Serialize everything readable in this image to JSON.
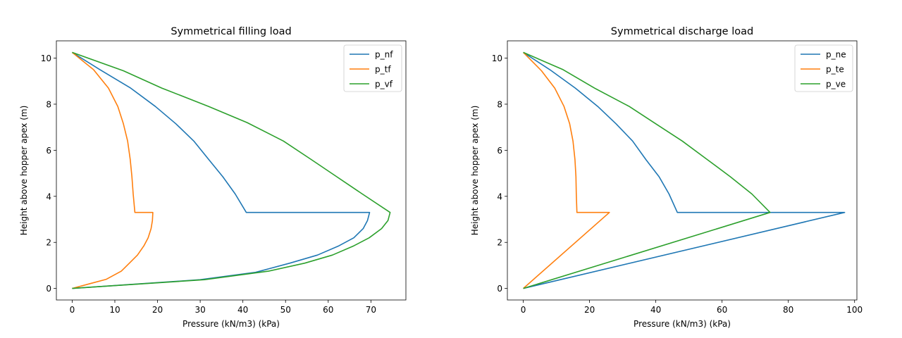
{
  "chart_data": [
    {
      "type": "line",
      "title": "Symmetrical filling load",
      "xlabel": "Pressure (kN/m3) (kPa)",
      "ylabel": "Height above hopper apex (m)",
      "xlim": [
        -3.7,
        78.2
      ],
      "ylim": [
        -0.5,
        10.75
      ],
      "xticks": [
        0,
        10,
        20,
        30,
        40,
        50,
        60,
        70
      ],
      "yticks": [
        0,
        2,
        4,
        6,
        8,
        10
      ],
      "legend": "top-right",
      "grid": false,
      "series": [
        {
          "name": "p_nf",
          "color": "#1f77b4",
          "points": [
            [
              0,
              10.25
            ],
            [
              6.5,
              9.5
            ],
            [
              13.7,
              8.7
            ],
            [
              19.5,
              7.9
            ],
            [
              24.3,
              7.15
            ],
            [
              28.5,
              6.4
            ],
            [
              32,
              5.6
            ],
            [
              35.3,
              4.85
            ],
            [
              38.2,
              4.1
            ],
            [
              40.8,
              3.3
            ],
            [
              69.7,
              3.3
            ],
            [
              69.2,
              2.95
            ],
            [
              68.2,
              2.6
            ],
            [
              66,
              2.2
            ],
            [
              62.5,
              1.85
            ],
            [
              57.5,
              1.45
            ],
            [
              51,
              1.1
            ],
            [
              43,
              0.7
            ],
            [
              30,
              0.38
            ],
            [
              0,
              0
            ]
          ]
        },
        {
          "name": "p_tf",
          "color": "#ff7f0e",
          "points": [
            [
              0,
              10.25
            ],
            [
              5,
              9.5
            ],
            [
              8.5,
              8.7
            ],
            [
              10.7,
              7.9
            ],
            [
              12,
              7.15
            ],
            [
              13,
              6.4
            ],
            [
              13.6,
              5.6
            ],
            [
              14,
              4.85
            ],
            [
              14.3,
              4.1
            ],
            [
              14.7,
              3.3
            ],
            [
              18.9,
              3.3
            ],
            [
              18.8,
              2.95
            ],
            [
              18.5,
              2.6
            ],
            [
              17.8,
              2.2
            ],
            [
              16.8,
              1.85
            ],
            [
              15.3,
              1.45
            ],
            [
              13.4,
              1.1
            ],
            [
              11.5,
              0.75
            ],
            [
              8,
              0.4
            ],
            [
              0,
              0
            ]
          ]
        },
        {
          "name": "p_vf",
          "color": "#2ca02c",
          "points": [
            [
              0,
              10.25
            ],
            [
              12,
              9.45
            ],
            [
              21,
              8.7
            ],
            [
              32,
              7.9
            ],
            [
              41,
              7.2
            ],
            [
              49.5,
              6.4
            ],
            [
              56,
              5.6
            ],
            [
              62,
              4.85
            ],
            [
              68,
              4.1
            ],
            [
              74.5,
              3.3
            ],
            [
              74,
              2.95
            ],
            [
              72.5,
              2.6
            ],
            [
              69.6,
              2.2
            ],
            [
              66,
              1.85
            ],
            [
              61,
              1.45
            ],
            [
              54.5,
              1.1
            ],
            [
              46,
              0.75
            ],
            [
              31,
              0.38
            ],
            [
              0,
              0
            ]
          ]
        }
      ]
    },
    {
      "type": "line",
      "title": "Symmetrical discharge load",
      "xlabel": "Pressure (kN/m3) (kPa)",
      "ylabel": "Height above hopper apex (m)",
      "xlim": [
        -4.8,
        100.7
      ],
      "ylim": [
        -0.5,
        10.75
      ],
      "xticks": [
        0,
        20,
        40,
        60,
        80,
        100
      ],
      "yticks": [
        0,
        2,
        4,
        6,
        8,
        10
      ],
      "legend": "top-right",
      "grid": false,
      "series": [
        {
          "name": "p_ne",
          "color": "#1f77b4",
          "points": [
            [
              0,
              10.25
            ],
            [
              8,
              9.5
            ],
            [
              15.7,
              8.7
            ],
            [
              22.5,
              7.9
            ],
            [
              28,
              7.15
            ],
            [
              33,
              6.4
            ],
            [
              37,
              5.6
            ],
            [
              41,
              4.85
            ],
            [
              44,
              4.1
            ],
            [
              46.5,
              3.3
            ],
            [
              97,
              3.3
            ],
            [
              0,
              0
            ]
          ]
        },
        {
          "name": "p_te",
          "color": "#ff7f0e",
          "points": [
            [
              0,
              10.25
            ],
            [
              5.5,
              9.45
            ],
            [
              9.5,
              8.7
            ],
            [
              12.3,
              7.9
            ],
            [
              14,
              7.15
            ],
            [
              15,
              6.4
            ],
            [
              15.6,
              5.6
            ],
            [
              15.9,
              4.85
            ],
            [
              16,
              4.1
            ],
            [
              16.2,
              3.3
            ],
            [
              26,
              3.3
            ],
            [
              0,
              0
            ]
          ]
        },
        {
          "name": "p_ve",
          "color": "#2ca02c",
          "points": [
            [
              0,
              10.25
            ],
            [
              12,
              9.5
            ],
            [
              21.5,
              8.7
            ],
            [
              32,
              7.9
            ],
            [
              40,
              7.15
            ],
            [
              48,
              6.4
            ],
            [
              55.5,
              5.6
            ],
            [
              62.5,
              4.85
            ],
            [
              69,
              4.1
            ],
            [
              74.5,
              3.3
            ],
            [
              0,
              0
            ]
          ]
        }
      ]
    }
  ]
}
